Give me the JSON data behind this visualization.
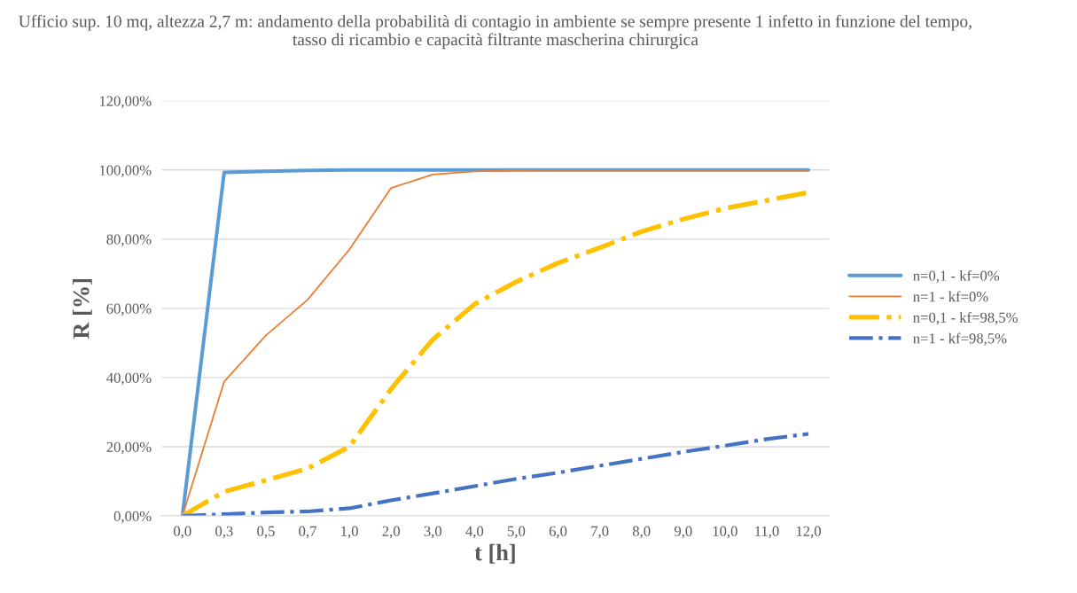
{
  "chart_data": {
    "type": "line",
    "title": "Ufficio sup. 10 mq, altezza 2,7 m: andamento della probabilità di contagio in ambiente se sempre presente 1 infetto in funzione del tempo, tasso di ricambio e capacità filtrante mascherina chirurgica",
    "xlabel": "t [h]",
    "ylabel": "R [%]",
    "categories": [
      "0,0",
      "0,3",
      "0,5",
      "0,7",
      "1,0",
      "2,0",
      "3,0",
      "4,0",
      "5,0",
      "6,0",
      "7,0",
      "8,0",
      "9,0",
      "10,0",
      "11,0",
      "12,0"
    ],
    "series": [
      {
        "name": "n=0,1 - kf=0%",
        "color": "#5b9bd5",
        "line_style": "solid",
        "values": [
          0,
          99.3,
          99.6,
          99.9,
          100,
          100,
          100,
          100,
          100,
          100,
          100,
          100,
          100,
          100,
          100,
          100
        ]
      },
      {
        "name": "n=1 - kf=0%",
        "color": "#ed7d31",
        "line_style": "solid",
        "values": [
          0,
          38.8,
          52.2,
          62.5,
          77,
          94.8,
          98.7,
          99.6,
          99.9,
          100,
          100,
          100,
          100,
          100,
          100,
          100
        ]
      },
      {
        "name": "n=0,1 - kf=98,5%",
        "color": "#ffc000",
        "line_style": "dashdot",
        "values": [
          0,
          7,
          10.3,
          13.7,
          20,
          36.7,
          51,
          61.2,
          67.7,
          73.1,
          77.5,
          82.2,
          85.8,
          88.9,
          91.2,
          93.5
        ]
      },
      {
        "name": "n=1 - kf=98,5%",
        "color": "#4472c4",
        "line_style": "dashdot",
        "values": [
          0,
          0.5,
          1,
          1.3,
          2.2,
          4.5,
          6.5,
          8.6,
          10.7,
          12.5,
          14.5,
          16.5,
          18.5,
          20.3,
          22.2,
          23.7
        ]
      }
    ],
    "ylim": [
      0,
      120
    ],
    "yticks": [
      {
        "value": 0,
        "label": "0,00%"
      },
      {
        "value": 20,
        "label": "20,00%"
      },
      {
        "value": 40,
        "label": "40,00%"
      },
      {
        "value": 60,
        "label": "60,00%"
      },
      {
        "value": 80,
        "label": "80,00%"
      },
      {
        "value": 100,
        "label": "100,00%"
      },
      {
        "value": 120,
        "label": "120,00%"
      }
    ],
    "grid": "y",
    "legend": "right",
    "marker": "none"
  }
}
